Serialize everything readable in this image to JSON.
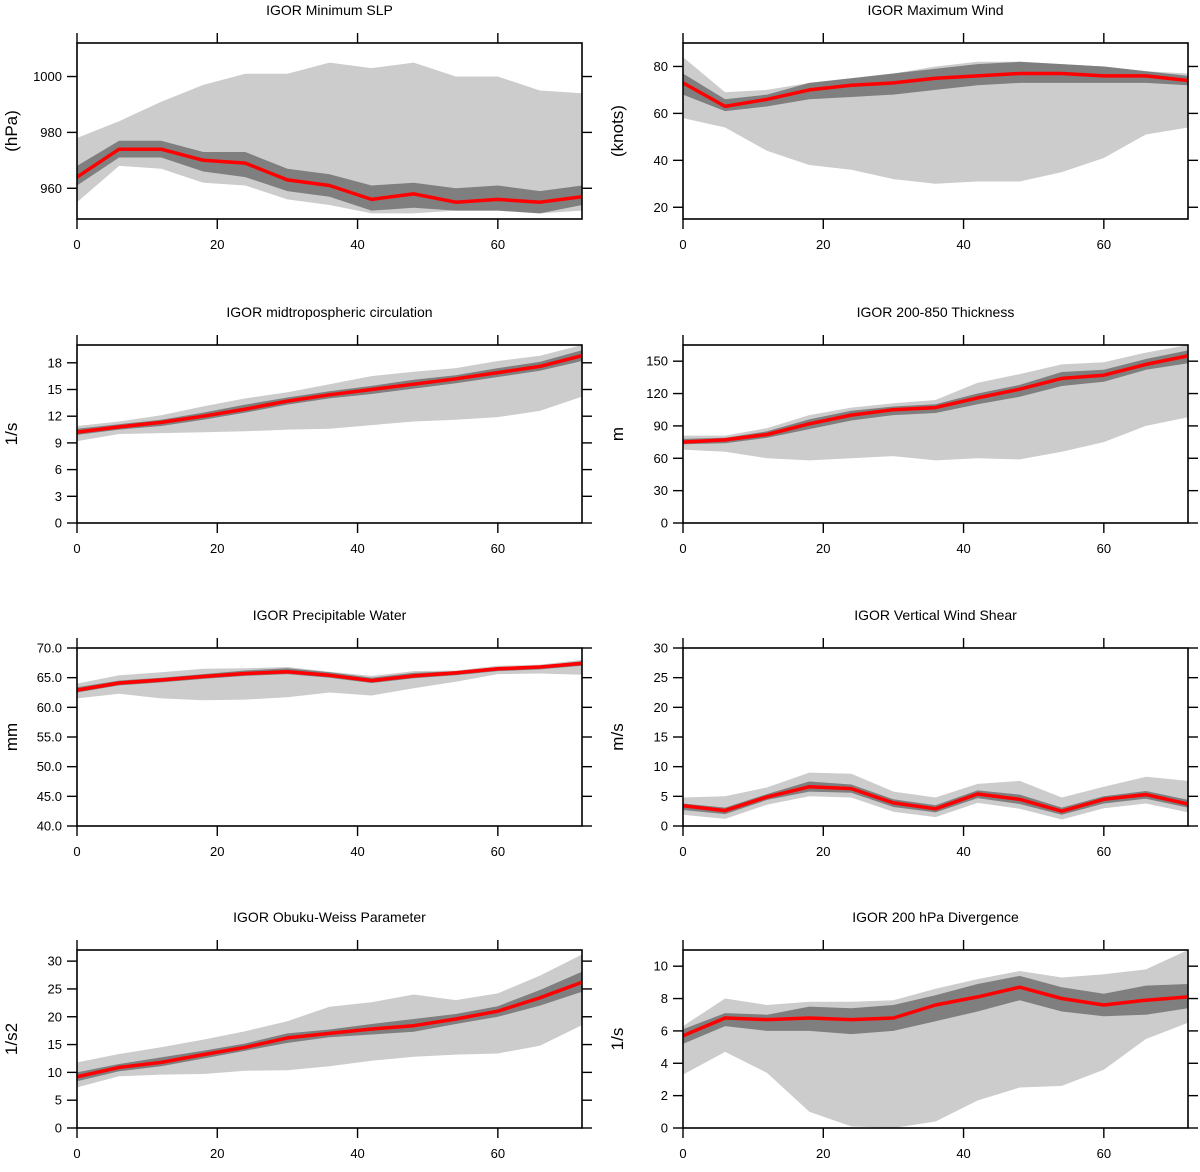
{
  "chart_data": [
    {
      "type": "line",
      "title": "IGOR Minimum SLP",
      "ylabel": "(hPa)",
      "xlabel": "",
      "xlim": [
        0,
        72
      ],
      "ylim": [
        949,
        1012
      ],
      "xticks": [
        0,
        20,
        40,
        60
      ],
      "yticks": [
        960,
        980,
        1000
      ],
      "x": [
        0,
        6,
        12,
        18,
        24,
        30,
        36,
        42,
        48,
        54,
        60,
        66,
        72
      ],
      "series": [
        {
          "role": "outer-band",
          "upper": [
            978,
            984,
            991,
            997,
            1001,
            1001,
            1005,
            1003,
            1005,
            1000,
            1000,
            995,
            994
          ],
          "lower": [
            955,
            968,
            967,
            962,
            961,
            956,
            954,
            951,
            951,
            952,
            952,
            951,
            952
          ]
        },
        {
          "role": "inner-band",
          "upper": [
            968,
            977,
            977,
            973,
            973,
            967,
            965,
            961,
            962,
            960,
            961,
            959,
            961
          ],
          "lower": [
            961,
            971,
            971,
            966,
            964,
            959,
            957,
            952,
            953,
            952,
            952,
            951,
            954
          ]
        },
        {
          "role": "mean",
          "values": [
            964,
            974,
            974,
            970,
            969,
            963,
            961,
            956,
            958,
            955,
            956,
            955,
            957
          ]
        }
      ]
    },
    {
      "type": "line",
      "title": "IGOR Maximum Wind",
      "ylabel": "(knots)",
      "xlabel": "",
      "xlim": [
        0,
        72
      ],
      "ylim": [
        15,
        90
      ],
      "xticks": [
        0,
        20,
        40,
        60
      ],
      "yticks": [
        20,
        40,
        60,
        80
      ],
      "x": [
        0,
        6,
        12,
        18,
        24,
        30,
        36,
        42,
        48,
        54,
        60,
        66,
        72
      ],
      "series": [
        {
          "role": "outer-band",
          "upper": [
            84,
            69,
            70,
            73,
            75,
            77,
            80,
            82,
            82,
            81,
            80,
            78,
            77
          ],
          "lower": [
            58,
            54,
            44,
            38,
            36,
            32,
            30,
            31,
            31,
            35,
            41,
            51,
            54
          ]
        },
        {
          "role": "inner-band",
          "upper": [
            77,
            66,
            68,
            73,
            75,
            77,
            79,
            81,
            82,
            81,
            80,
            78,
            76
          ],
          "lower": [
            68,
            61,
            63,
            66,
            67,
            68,
            70,
            72,
            73,
            73,
            73,
            73,
            72
          ]
        },
        {
          "role": "mean",
          "values": [
            73,
            63,
            66,
            70,
            72,
            73,
            75,
            76,
            77,
            77,
            76,
            76,
            74
          ]
        }
      ]
    },
    {
      "type": "line",
      "title": "IGOR midtropospheric circulation",
      "ylabel": "1/s",
      "xlabel": "",
      "xlim": [
        0,
        72
      ],
      "ylim": [
        0,
        20
      ],
      "xticks": [
        0,
        20,
        40,
        60
      ],
      "yticks": [
        0,
        3,
        6,
        9,
        12,
        15,
        18
      ],
      "x": [
        0,
        6,
        12,
        18,
        24,
        30,
        36,
        42,
        48,
        54,
        60,
        66,
        72
      ],
      "series": [
        {
          "role": "outer-band",
          "upper": [
            10.9,
            11.4,
            12.1,
            13.1,
            14.0,
            14.7,
            15.6,
            16.5,
            17.0,
            17.4,
            18.2,
            18.8,
            20.0
          ],
          "lower": [
            9.2,
            10.0,
            10.1,
            10.2,
            10.3,
            10.5,
            10.6,
            11.0,
            11.4,
            11.6,
            11.9,
            12.6,
            14.2
          ]
        },
        {
          "role": "inner-band",
          "upper": [
            10.6,
            11.1,
            11.6,
            12.4,
            13.3,
            14.1,
            14.8,
            15.4,
            16.1,
            16.6,
            17.4,
            18.1,
            19.4
          ],
          "lower": [
            9.9,
            10.5,
            10.9,
            11.6,
            12.4,
            13.3,
            14.0,
            14.5,
            15.1,
            15.7,
            16.4,
            17.1,
            18.2
          ]
        },
        {
          "role": "mean",
          "values": [
            10.2,
            10.8,
            11.3,
            12.0,
            12.8,
            13.7,
            14.4,
            15.0,
            15.6,
            16.2,
            16.9,
            17.6,
            18.8
          ]
        }
      ]
    },
    {
      "type": "line",
      "title": "IGOR 200-850 Thickness",
      "ylabel": "m",
      "xlabel": "",
      "xlim": [
        0,
        72
      ],
      "ylim": [
        0,
        165
      ],
      "xticks": [
        0,
        20,
        40,
        60
      ],
      "yticks": [
        0,
        30,
        60,
        90,
        120,
        150
      ],
      "x": [
        0,
        6,
        12,
        18,
        24,
        30,
        36,
        42,
        48,
        54,
        60,
        66,
        72
      ],
      "series": [
        {
          "role": "outer-band",
          "upper": [
            81,
            81,
            88,
            100,
            107,
            111,
            114,
            130,
            138,
            147,
            149,
            158,
            165
          ],
          "lower": [
            68,
            66,
            60,
            58,
            60,
            62,
            58,
            60,
            59,
            66,
            75,
            90,
            98
          ]
        },
        {
          "role": "inner-band",
          "upper": [
            78,
            79,
            85,
            96,
            104,
            108,
            110,
            120,
            128,
            140,
            142,
            152,
            160
          ],
          "lower": [
            73,
            74,
            79,
            87,
            95,
            100,
            102,
            110,
            117,
            127,
            131,
            142,
            148
          ]
        },
        {
          "role": "mean",
          "values": [
            75,
            77,
            82,
            92,
            100,
            105,
            107,
            116,
            124,
            134,
            137,
            147,
            155
          ]
        }
      ]
    },
    {
      "type": "line",
      "title": "IGOR Precipitable Water",
      "ylabel": "mm",
      "xlabel": "",
      "xlim": [
        0,
        72
      ],
      "ylim": [
        40,
        70
      ],
      "xticks": [
        0,
        20,
        40,
        60
      ],
      "yticks": [
        40.0,
        45.0,
        50.0,
        55.0,
        60.0,
        65.0,
        70.0
      ],
      "ytickLabels": [
        "40.0",
        "45.0",
        "50.0",
        "55.0",
        "60.0",
        "65.0",
        "70.0"
      ],
      "x": [
        0,
        6,
        12,
        18,
        24,
        30,
        36,
        42,
        48,
        54,
        60,
        66,
        72
      ],
      "series": [
        {
          "role": "outer-band",
          "upper": [
            64.0,
            65.4,
            65.9,
            66.5,
            66.6,
            66.8,
            66.0,
            65.3,
            66.1,
            66.2,
            67.0,
            67.2,
            68.0
          ],
          "lower": [
            61.5,
            62.3,
            61.5,
            61.2,
            61.3,
            61.7,
            62.5,
            62.0,
            63.2,
            64.3,
            65.6,
            65.7,
            65.5
          ]
        },
        {
          "role": "inner-band",
          "upper": [
            63.4,
            64.5,
            65.0,
            65.6,
            66.2,
            66.6,
            65.9,
            65.0,
            65.8,
            66.1,
            66.8,
            67.0,
            67.8
          ]
        },
        {
          "role": "mean",
          "values": [
            62.9,
            64.1,
            64.6,
            65.2,
            65.7,
            66.0,
            65.4,
            64.5,
            65.3,
            65.8,
            66.5,
            66.8,
            67.4
          ]
        }
      ]
    },
    {
      "type": "line",
      "title": "IGOR Vertical Wind Shear",
      "ylabel": "m/s",
      "xlabel": "",
      "xlim": [
        0,
        72
      ],
      "ylim": [
        0,
        30
      ],
      "xticks": [
        0,
        20,
        40,
        60
      ],
      "yticks": [
        0,
        5,
        10,
        15,
        20,
        25,
        30
      ],
      "x": [
        0,
        6,
        12,
        18,
        24,
        30,
        36,
        42,
        48,
        54,
        60,
        66,
        72
      ],
      "series": [
        {
          "role": "outer-band",
          "upper": [
            4.8,
            5.0,
            6.5,
            9.0,
            8.8,
            5.8,
            4.8,
            7.1,
            7.6,
            4.8,
            6.6,
            8.3,
            7.6
          ]
        },
        {
          "role": "inner-band",
          "upper": [
            3.8,
            3.1,
            5.4,
            7.5,
            7.0,
            4.5,
            3.5,
            6.0,
            5.3,
            3.1,
            5.0,
            5.9,
            4.4
          ],
          "lower": [
            2.7,
            2.0,
            4.4,
            5.8,
            5.6,
            3.2,
            2.3,
            4.7,
            3.7,
            1.9,
            3.8,
            4.6,
            3.1
          ]
        },
        {
          "role": "mean",
          "values": [
            3.4,
            2.6,
            4.9,
            6.6,
            6.3,
            3.9,
            2.9,
            5.4,
            4.5,
            2.5,
            4.5,
            5.3,
            3.7
          ]
        }
      ]
    },
    {
      "type": "line",
      "title": "IGOR Obuku-Weiss Parameter",
      "ylabel": "1/s2",
      "xlabel": "",
      "xlim": [
        0,
        72
      ],
      "ylim": [
        0,
        32
      ],
      "xticks": [
        0,
        20,
        40,
        60
      ],
      "yticks": [
        0,
        5,
        10,
        15,
        20,
        25,
        30
      ],
      "x": [
        0,
        6,
        12,
        18,
        24,
        30,
        36,
        42,
        48,
        54,
        60,
        66,
        72
      ],
      "series": [
        {
          "role": "outer-band",
          "upper": [
            11.8,
            13.3,
            14.5,
            15.9,
            17.4,
            19.2,
            21.8,
            22.6,
            24.0,
            23.0,
            24.2,
            27.4,
            31.2
          ],
          "lower": [
            7.3,
            9.3,
            9.6,
            9.7,
            10.3,
            10.4,
            11.1,
            12.1,
            12.8,
            13.2,
            13.4,
            14.8,
            18.5
          ]
        },
        {
          "role": "inner-band",
          "upper": [
            10.0,
            11.5,
            12.7,
            13.9,
            15.2,
            17.0,
            17.7,
            18.7,
            19.6,
            20.5,
            21.9,
            24.8,
            28.1
          ],
          "lower": [
            8.4,
            10.2,
            11.1,
            12.5,
            13.9,
            15.3,
            16.3,
            16.8,
            17.3,
            18.7,
            20.0,
            22.0,
            24.5
          ]
        },
        {
          "role": "mean",
          "values": [
            9.2,
            10.9,
            11.8,
            13.2,
            14.5,
            16.2,
            17.0,
            17.8,
            18.4,
            19.6,
            21.0,
            23.4,
            26.2
          ]
        }
      ]
    },
    {
      "type": "line",
      "title": "IGOR 200 hPa Divergence",
      "ylabel": "1/s",
      "xlabel": "",
      "xlim": [
        0,
        72
      ],
      "ylim": [
        0,
        11
      ],
      "xticks": [
        0,
        20,
        40,
        60
      ],
      "yticks": [
        0,
        2,
        4,
        6,
        8,
        10
      ],
      "x": [
        0,
        6,
        12,
        18,
        24,
        30,
        36,
        42,
        48,
        54,
        60,
        66,
        72
      ],
      "series": [
        {
          "role": "outer-band",
          "upper": [
            6.3,
            8.0,
            7.6,
            7.8,
            7.8,
            7.9,
            8.6,
            9.2,
            9.7,
            9.3,
            9.5,
            9.8,
            11.0
          ],
          "lower": [
            3.3,
            4.7,
            3.4,
            1.0,
            0.1,
            0.0,
            0.4,
            1.7,
            2.5,
            2.6,
            3.6,
            5.5,
            6.5
          ]
        },
        {
          "role": "inner-band",
          "upper": [
            6.1,
            7.1,
            7.0,
            7.5,
            7.4,
            7.6,
            8.2,
            8.9,
            9.4,
            8.7,
            8.3,
            8.8,
            8.9
          ],
          "lower": [
            5.2,
            6.3,
            6.0,
            6.0,
            5.8,
            6.0,
            6.6,
            7.2,
            7.9,
            7.2,
            6.9,
            7.0,
            7.4
          ]
        },
        {
          "role": "mean",
          "values": [
            5.7,
            6.8,
            6.7,
            6.8,
            6.7,
            6.8,
            7.6,
            8.1,
            8.7,
            8.0,
            7.6,
            7.9,
            8.1
          ]
        }
      ]
    }
  ],
  "colors": {
    "outer_band": "#cccccc",
    "inner_band": "#7f7f7f",
    "mean_line": "#ff0000",
    "axis": "#000000",
    "background": "#ffffff"
  }
}
